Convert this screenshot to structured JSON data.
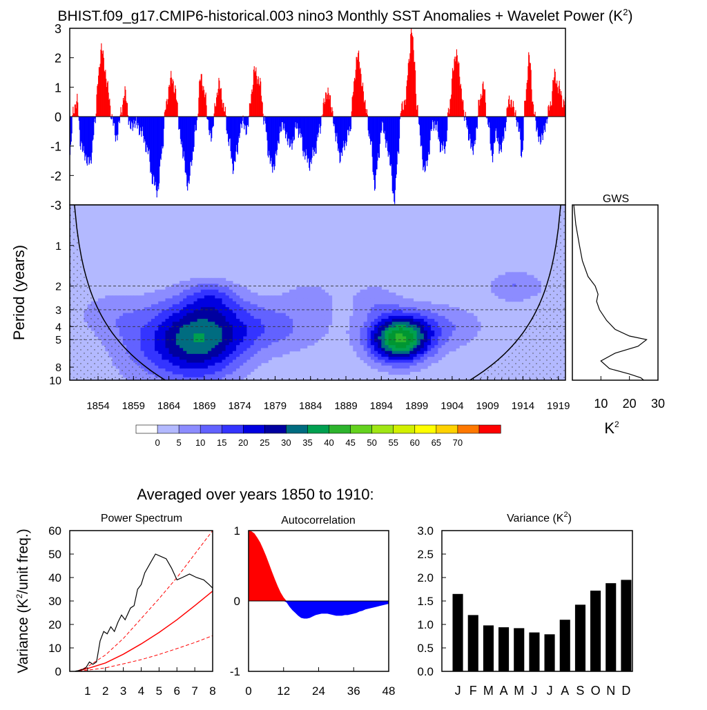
{
  "figure": {
    "title": "BHIST.f09_g17.CMIP6-historical.003 nino3 Monthly SST Anomalies + Wavelet Power (K",
    "title_sup": "2",
    "title_close": ")",
    "bottom_heading": "Averaged over years 1850 to 1910:"
  },
  "colors": {
    "positive": "#ff0000",
    "negative": "#0000ff",
    "bar": "#000000",
    "curve": "#000000",
    "red_line": "#ff0000",
    "power_palette": [
      "#ffffff",
      "#b3b9ff",
      "#8c8cff",
      "#6262ff",
      "#3434ff",
      "#0000e0",
      "#0000a0",
      "#006c80",
      "#00a050",
      "#009632",
      "#2db42d",
      "#64d21e",
      "#a0e614",
      "#d2f000",
      "#ffff00",
      "#ffd200",
      "#ffa000",
      "#ff7800",
      "#ff4600",
      "#ff0000"
    ]
  },
  "chart_data": [
    {
      "id": "anomaly",
      "type": "area",
      "ylim": [
        -3,
        3
      ],
      "yticks": [
        "3",
        "2",
        "1",
        "0",
        "-1",
        "-2",
        "-3"
      ],
      "x_range_years": [
        1850,
        1920
      ],
      "anomaly_monthly_knots": [
        [
          1850.0,
          -1.3
        ],
        [
          1850.5,
          0.3
        ],
        [
          1851.0,
          0.5
        ],
        [
          1851.5,
          -0.9
        ],
        [
          1852.0,
          -1.3
        ],
        [
          1852.8,
          -1.6
        ],
        [
          1853.5,
          -0.3
        ],
        [
          1854.0,
          1.5
        ],
        [
          1854.5,
          2.3
        ],
        [
          1855.3,
          1.0
        ],
        [
          1856.0,
          -0.2
        ],
        [
          1856.6,
          -0.7
        ],
        [
          1857.3,
          0.3
        ],
        [
          1857.8,
          0.8
        ],
        [
          1858.5,
          -0.4
        ],
        [
          1859.0,
          -0.2
        ],
        [
          1859.5,
          -0.3
        ],
        [
          1860.2,
          -0.6
        ],
        [
          1861.0,
          -1.2
        ],
        [
          1861.7,
          -2.2
        ],
        [
          1862.4,
          -2.5
        ],
        [
          1863.0,
          -1.1
        ],
        [
          1863.5,
          0.3
        ],
        [
          1864.2,
          1.3
        ],
        [
          1864.8,
          1.0
        ],
        [
          1865.5,
          -0.5
        ],
        [
          1866.0,
          -1.4
        ],
        [
          1866.7,
          -2.4
        ],
        [
          1867.2,
          -1.4
        ],
        [
          1867.8,
          -0.4
        ],
        [
          1868.4,
          1.3
        ],
        [
          1869.0,
          0.9
        ],
        [
          1869.5,
          -0.3
        ],
        [
          1870.0,
          -0.7
        ],
        [
          1870.6,
          0.6
        ],
        [
          1871.1,
          1.1
        ],
        [
          1871.8,
          0.2
        ],
        [
          1872.4,
          -0.8
        ],
        [
          1873.0,
          -1.7
        ],
        [
          1873.6,
          -1.2
        ],
        [
          1874.0,
          -0.4
        ],
        [
          1874.5,
          -0.2
        ],
        [
          1875.0,
          -0.5
        ],
        [
          1875.6,
          0.8
        ],
        [
          1876.1,
          1.6
        ],
        [
          1876.8,
          1.1
        ],
        [
          1877.5,
          -0.2
        ],
        [
          1878.0,
          -1.2
        ],
        [
          1878.6,
          -1.8
        ],
        [
          1879.2,
          -1.2
        ],
        [
          1879.8,
          -0.3
        ],
        [
          1880.4,
          -0.5
        ],
        [
          1881.0,
          -1.0
        ],
        [
          1881.5,
          -0.8
        ],
        [
          1882.0,
          -0.3
        ],
        [
          1882.5,
          -0.6
        ],
        [
          1883.0,
          -1.2
        ],
        [
          1883.8,
          -1.6
        ],
        [
          1884.5,
          -1.2
        ],
        [
          1885.2,
          -0.5
        ],
        [
          1885.8,
          0.4
        ],
        [
          1886.4,
          0.9
        ],
        [
          1887.0,
          0.2
        ],
        [
          1887.6,
          -0.8
        ],
        [
          1888.2,
          -1.4
        ],
        [
          1888.8,
          -0.9
        ],
        [
          1889.5,
          -0.5
        ],
        [
          1890.0,
          0.9
        ],
        [
          1890.6,
          2.2
        ],
        [
          1891.2,
          1.2
        ],
        [
          1891.8,
          0.2
        ],
        [
          1892.4,
          -0.8
        ],
        [
          1893.0,
          -2.3
        ],
        [
          1893.5,
          -1.5
        ],
        [
          1894.0,
          -0.3
        ],
        [
          1894.6,
          -0.8
        ],
        [
          1895.2,
          -1.6
        ],
        [
          1895.8,
          -2.9
        ],
        [
          1896.3,
          -1.2
        ],
        [
          1896.8,
          0.3
        ],
        [
          1897.4,
          0.6
        ],
        [
          1897.8,
          1.8
        ],
        [
          1898.2,
          3.0
        ],
        [
          1898.6,
          2.0
        ],
        [
          1899.0,
          0.3
        ],
        [
          1899.5,
          -0.8
        ],
        [
          1900.0,
          -1.9
        ],
        [
          1900.6,
          -1.3
        ],
        [
          1901.2,
          -0.2
        ],
        [
          1901.8,
          -0.4
        ],
        [
          1902.4,
          -1.1
        ],
        [
          1903.0,
          -1.0
        ],
        [
          1903.5,
          0.2
        ],
        [
          1904.1,
          1.6
        ],
        [
          1904.6,
          2.2
        ],
        [
          1905.3,
          0.8
        ],
        [
          1905.8,
          -0.1
        ],
        [
          1906.3,
          -0.6
        ],
        [
          1906.8,
          -1.2
        ],
        [
          1907.4,
          -0.5
        ],
        [
          1907.8,
          0.6
        ],
        [
          1908.4,
          1.0
        ],
        [
          1909.0,
          -0.2
        ],
        [
          1909.6,
          -1.3
        ],
        [
          1910.2,
          -0.6
        ],
        [
          1910.8,
          -1.2
        ],
        [
          1911.4,
          -0.4
        ],
        [
          1912.0,
          0.6
        ],
        [
          1912.8,
          0.2
        ],
        [
          1913.4,
          -0.5
        ],
        [
          1913.8,
          -1.3
        ],
        [
          1914.3,
          0.6
        ],
        [
          1914.8,
          2.1
        ],
        [
          1915.4,
          0.4
        ],
        [
          1916.0,
          -0.6
        ],
        [
          1916.6,
          -0.8
        ],
        [
          1917.2,
          -0.2
        ],
        [
          1917.8,
          0.4
        ],
        [
          1918.4,
          1.4
        ],
        [
          1919.0,
          1.0
        ],
        [
          1919.6,
          0.5
        ],
        [
          1920.0,
          0.6
        ]
      ]
    },
    {
      "id": "wavelet",
      "type": "heatmap",
      "ylabel": "Period (years)",
      "yticks": [
        "1",
        "2",
        "3",
        "4",
        "5",
        "8",
        "10"
      ],
      "xticks": [
        "1854",
        "1859",
        "1864",
        "1869",
        "1874",
        "1879",
        "1884",
        "1889",
        "1894",
        "1899",
        "1904",
        "1909",
        "1914",
        "1919"
      ],
      "period_range": [
        0.5,
        10
      ],
      "blobs": [
        {
          "year": 1868,
          "period": 5.1,
          "sy": 4.5,
          "sp": 0.5,
          "amp": 30
        },
        {
          "year": 1896.5,
          "period": 5.0,
          "sy": 3.0,
          "sp": 0.28,
          "amp": 42
        },
        {
          "year": 1877,
          "period": 4.0,
          "sy": 7,
          "sp": 0.35,
          "amp": 12
        },
        {
          "year": 1902,
          "period": 4.0,
          "sy": 5,
          "sp": 0.3,
          "amp": 10
        },
        {
          "year": 1860,
          "period": 5.5,
          "sy": 4,
          "sp": 0.5,
          "amp": 8
        },
        {
          "year": 1913,
          "period": 2.0,
          "sy": 3,
          "sp": 0.2,
          "amp": 10
        },
        {
          "year": 1870,
          "period": 2.4,
          "sy": 2.5,
          "sp": 0.2,
          "amp": 9
        },
        {
          "year": 1884,
          "period": 2.4,
          "sy": 2.5,
          "sp": 0.2,
          "amp": 6
        },
        {
          "year": 1893,
          "period": 2.5,
          "sy": 2.5,
          "sp": 0.22,
          "amp": 7
        },
        {
          "year": 1855,
          "period": 3.2,
          "sy": 3.5,
          "sp": 0.3,
          "amp": 6
        }
      ],
      "contour_levels": [
        0,
        5,
        10,
        15,
        20,
        25,
        30,
        35,
        40,
        45,
        50,
        55,
        60,
        65,
        70
      ],
      "dashed_periods": [
        2,
        3,
        4,
        5
      ]
    },
    {
      "id": "gws",
      "type": "line",
      "title": "GWS",
      "xticks": [
        "10",
        "20",
        "30"
      ],
      "xlim": [
        0,
        30
      ],
      "xlabel": "K",
      "xlabel_sup": "2",
      "points": [
        [
          0.5,
          0.5
        ],
        [
          1.2,
          0.7
        ],
        [
          2.5,
          1.0
        ],
        [
          3.5,
          1.3
        ],
        [
          5.5,
          1.7
        ],
        [
          8.0,
          2.0
        ],
        [
          9.0,
          2.3
        ],
        [
          8.5,
          2.6
        ],
        [
          9.5,
          3.0
        ],
        [
          12.0,
          3.6
        ],
        [
          15.0,
          4.2
        ],
        [
          20.0,
          4.7
        ],
        [
          26.0,
          5.0
        ],
        [
          23.0,
          5.6
        ],
        [
          15.0,
          6.3
        ],
        [
          10.0,
          7.2
        ],
        [
          13.0,
          8.2
        ],
        [
          20.0,
          9.0
        ],
        [
          24.0,
          9.6
        ],
        [
          25.0,
          10.0
        ]
      ]
    },
    {
      "id": "colorbar",
      "type": "table",
      "labels": [
        "0",
        "5",
        "10",
        "15",
        "20",
        "25",
        "30",
        "35",
        "40",
        "45",
        "50",
        "55",
        "60",
        "65",
        "70"
      ]
    },
    {
      "id": "power_spectrum",
      "type": "line",
      "title": "Power Spectrum",
      "ylabel": "Variance (K",
      "ylabel_sup": "2",
      "ylabel_close": "/unit freq.)",
      "xlim": [
        0,
        8
      ],
      "ylim": [
        0,
        60
      ],
      "xticks": [
        "1",
        "2",
        "3",
        "4",
        "5",
        "6",
        "7",
        "8"
      ],
      "yticks": [
        "0",
        "10",
        "20",
        "30",
        "40",
        "50",
        "60"
      ],
      "spectrum": [
        [
          0.3,
          0.1
        ],
        [
          0.6,
          0.5
        ],
        [
          0.9,
          1.5
        ],
        [
          1.1,
          4
        ],
        [
          1.3,
          3
        ],
        [
          1.5,
          4
        ],
        [
          1.7,
          13
        ],
        [
          1.9,
          17
        ],
        [
          2.1,
          16
        ],
        [
          2.3,
          19
        ],
        [
          2.5,
          17
        ],
        [
          2.7,
          21
        ],
        [
          2.9,
          24
        ],
        [
          3.1,
          22
        ],
        [
          3.4,
          27
        ],
        [
          3.6,
          28
        ],
        [
          3.8,
          35
        ],
        [
          4.0,
          37
        ],
        [
          4.2,
          42
        ],
        [
          4.5,
          46
        ],
        [
          4.8,
          50
        ],
        [
          5.1,
          49
        ],
        [
          5.4,
          48
        ],
        [
          5.7,
          44
        ],
        [
          6.0,
          39
        ],
        [
          6.3,
          40
        ],
        [
          6.7,
          41.5
        ],
        [
          7.1,
          40
        ],
        [
          7.5,
          39
        ],
        [
          7.8,
          37
        ],
        [
          8.0,
          35.5
        ]
      ],
      "red_noise_mid": [
        [
          0.5,
          0.3
        ],
        [
          1,
          1.2
        ],
        [
          2,
          3.6
        ],
        [
          3,
          7.3
        ],
        [
          4,
          11.7
        ],
        [
          5,
          16.6
        ],
        [
          6,
          22
        ],
        [
          7,
          28
        ],
        [
          8,
          34.2
        ]
      ],
      "red_noise_upper": [
        [
          0.5,
          0.4
        ],
        [
          1,
          2
        ],
        [
          2,
          7
        ],
        [
          3,
          14
        ],
        [
          4,
          22.5
        ],
        [
          5,
          31
        ],
        [
          6,
          40
        ],
        [
          7,
          50
        ],
        [
          8,
          60
        ]
      ],
      "red_noise_lower": [
        [
          0.5,
          0.1
        ],
        [
          1,
          0.5
        ],
        [
          2,
          1.5
        ],
        [
          3,
          3.2
        ],
        [
          4,
          5
        ],
        [
          5,
          7.2
        ],
        [
          6,
          9.7
        ],
        [
          7,
          12.3
        ],
        [
          8,
          15.2
        ]
      ]
    },
    {
      "id": "autocorrelation",
      "type": "area",
      "title": "Autocorrelation",
      "xlim": [
        0,
        48
      ],
      "ylim": [
        -1,
        1
      ],
      "xticks": [
        "0",
        "12",
        "24",
        "36",
        "48"
      ],
      "yticks": [
        "1",
        "0",
        "-1"
      ],
      "points": [
        [
          0,
          1
        ],
        [
          1,
          0.99
        ],
        [
          2,
          0.96
        ],
        [
          3,
          0.9
        ],
        [
          4,
          0.83
        ],
        [
          5,
          0.74
        ],
        [
          6,
          0.64
        ],
        [
          7,
          0.53
        ],
        [
          8,
          0.42
        ],
        [
          9,
          0.31
        ],
        [
          10,
          0.21
        ],
        [
          11,
          0.12
        ],
        [
          12,
          0.05
        ],
        [
          13,
          -0.02
        ],
        [
          14,
          -0.08
        ],
        [
          15,
          -0.13
        ],
        [
          16,
          -0.17
        ],
        [
          17,
          -0.21
        ],
        [
          18,
          -0.24
        ],
        [
          19,
          -0.25
        ],
        [
          20,
          -0.25
        ],
        [
          21,
          -0.24
        ],
        [
          22,
          -0.22
        ],
        [
          23,
          -0.2
        ],
        [
          24,
          -0.19
        ],
        [
          25,
          -0.18
        ],
        [
          26,
          -0.18
        ],
        [
          27,
          -0.18
        ],
        [
          28,
          -0.19
        ],
        [
          29,
          -0.2
        ],
        [
          30,
          -0.21
        ],
        [
          31,
          -0.21
        ],
        [
          32,
          -0.21
        ],
        [
          33,
          -0.2
        ],
        [
          34,
          -0.2
        ],
        [
          35,
          -0.19
        ],
        [
          36,
          -0.18
        ],
        [
          37,
          -0.17
        ],
        [
          38,
          -0.15
        ],
        [
          39,
          -0.14
        ],
        [
          40,
          -0.12
        ],
        [
          41,
          -0.11
        ],
        [
          42,
          -0.1
        ],
        [
          43,
          -0.09
        ],
        [
          44,
          -0.08
        ],
        [
          45,
          -0.07
        ],
        [
          46,
          -0.06
        ],
        [
          47,
          -0.05
        ],
        [
          48,
          -0.04
        ]
      ]
    },
    {
      "id": "variance",
      "type": "bar",
      "title": "Variance (K",
      "title_sup": "2",
      "title_close": ")",
      "categories": [
        "J",
        "F",
        "M",
        "A",
        "M",
        "J",
        "J",
        "A",
        "S",
        "O",
        "N",
        "D"
      ],
      "values": [
        1.65,
        1.2,
        0.98,
        0.94,
        0.92,
        0.83,
        0.79,
        1.1,
        1.42,
        1.72,
        1.88,
        1.95
      ],
      "ylim": [
        0,
        3.0
      ],
      "yticks": [
        "0.0",
        "0.5",
        "1.0",
        "1.5",
        "2.0",
        "2.5",
        "3.0"
      ]
    }
  ]
}
